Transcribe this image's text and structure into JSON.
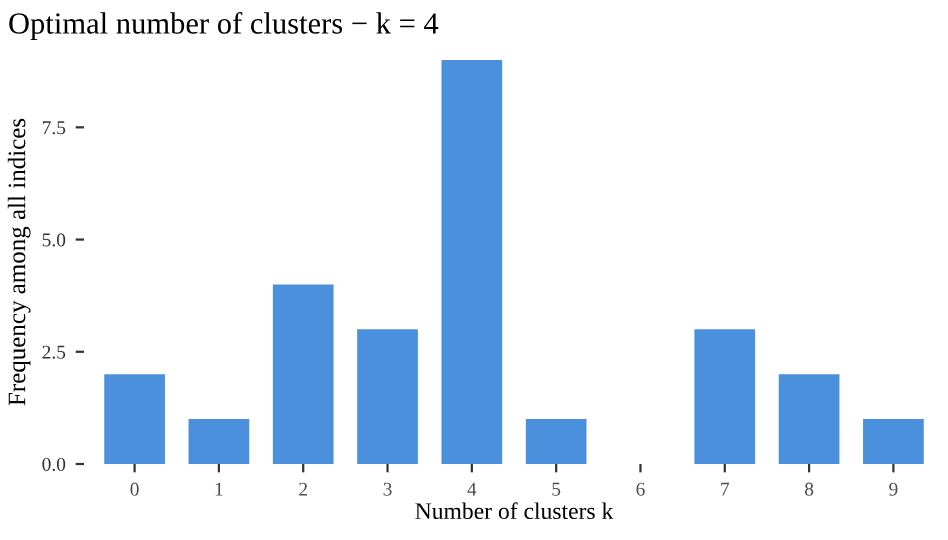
{
  "chart_data": {
    "type": "bar",
    "title": "Optimal number of clusters − k = 4",
    "xlabel": "Number of clusters k",
    "ylabel": "Frequency among all indices",
    "categories": [
      "0",
      "1",
      "2",
      "3",
      "4",
      "5",
      "6",
      "7",
      "8",
      "9"
    ],
    "values": [
      2,
      1,
      4,
      3,
      9,
      1,
      0,
      3,
      2,
      1
    ],
    "color": "#4a90dc",
    "ylim": [
      0,
      9
    ],
    "yticks": [
      {
        "value": 0,
        "label": "0.0"
      },
      {
        "value": 2.5,
        "label": "2.5"
      },
      {
        "value": 5,
        "label": "5.0"
      },
      {
        "value": 7.5,
        "label": "7.5"
      }
    ],
    "grid": false
  }
}
